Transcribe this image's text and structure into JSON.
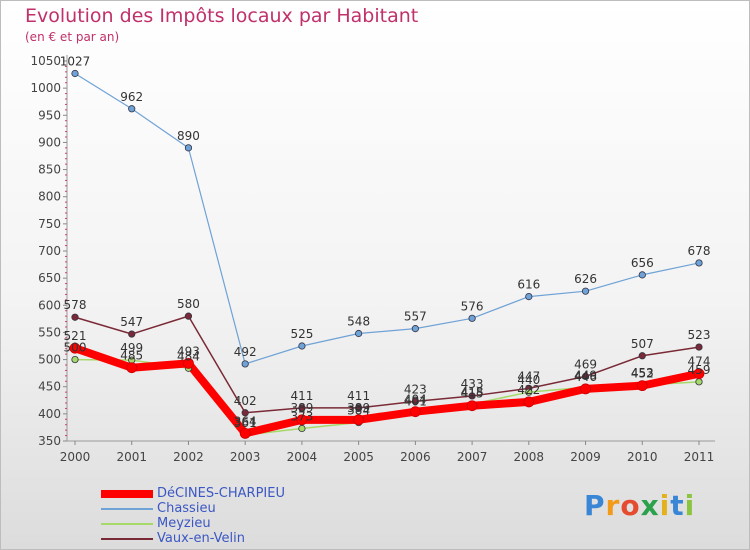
{
  "header": {
    "title": "Evolution des Impôts locaux par Habitant",
    "subtitle": "(en € et par an)"
  },
  "logo": {
    "text": "Proxiti",
    "letters": [
      "P",
      "r",
      "o",
      "x",
      "i",
      "t",
      "i"
    ],
    "colors": [
      "#3a86d6",
      "#f29b1a",
      "#e54b2f",
      "#2aa14a",
      "#e3b11b",
      "#3a86d6",
      "#8bc540"
    ]
  },
  "chart_data": {
    "type": "line",
    "title": "Evolution des Impôts locaux par Habitant",
    "subtitle": "(en € et par an)",
    "xlabel": "",
    "ylabel": "",
    "ylim": [
      350,
      1050
    ],
    "yticks": [
      350,
      400,
      450,
      500,
      550,
      600,
      650,
      700,
      750,
      800,
      850,
      900,
      950,
      1000,
      1050
    ],
    "grid": "horizontal",
    "legend_position": "bottom-left",
    "categories": [
      "2000",
      "2001",
      "2002",
      "2003",
      "2004",
      "2005",
      "2006",
      "2007",
      "2008",
      "2009",
      "2010",
      "2011"
    ],
    "series": [
      {
        "name": "DéCINES-CHARPIEU",
        "color": "#ff0000",
        "values": [
          521,
          485,
          493,
          364,
          389,
          389,
          404,
          415,
          422,
          446,
          452,
          474
        ],
        "labels": [
          "521",
          "485",
          "493",
          "364",
          "389",
          "389",
          "404",
          "415",
          "422",
          "446",
          "452",
          "474"
        ]
      },
      {
        "name": "Chassieu",
        "color": "#6fa2d6",
        "values": [
          1027,
          962,
          890,
          492,
          525,
          548,
          557,
          576,
          616,
          626,
          656,
          678
        ],
        "labels": [
          "1027",
          "962",
          "890",
          "492",
          "525",
          "548",
          "557",
          "576",
          "616",
          "626",
          "656",
          "678"
        ]
      },
      {
        "name": "Meyzieu",
        "color": "#a6d96a",
        "values": [
          500,
          499,
          484,
          361,
          373,
          384,
          401,
          418,
          440,
          449,
          453,
          459
        ],
        "labels": [
          "500",
          "499",
          "484",
          "361",
          "373",
          "384",
          "401",
          "418",
          "440",
          "449",
          "453",
          "459"
        ]
      },
      {
        "name": "Vaux-en-Velin",
        "color": "#7a2a36",
        "values": [
          578,
          547,
          580,
          402,
          411,
          411,
          423,
          433,
          447,
          469,
          507,
          523
        ],
        "labels": [
          "578",
          "547",
          "580",
          "402",
          "411",
          "411",
          "423",
          "433",
          "447",
          "469",
          "507",
          "523"
        ]
      }
    ]
  }
}
